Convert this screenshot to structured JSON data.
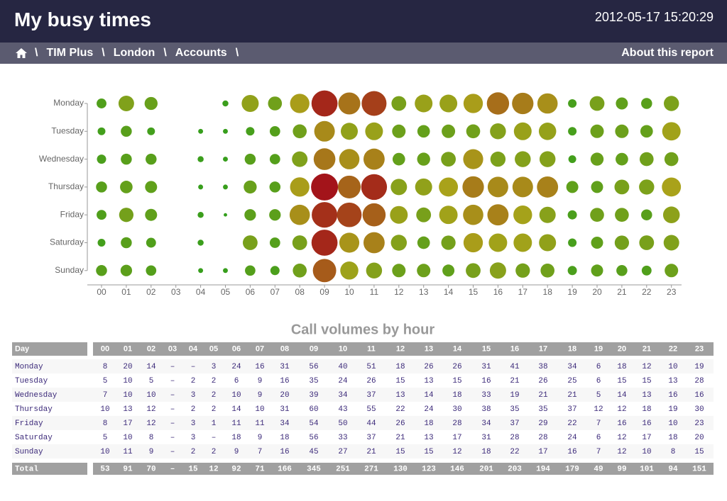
{
  "header": {
    "title": "My busy times",
    "timestamp": "2012-05-17 15:20:29"
  },
  "breadcrumb": {
    "items": [
      "TIM Plus",
      "London",
      "Accounts"
    ],
    "separator": "\\",
    "about": "About this report"
  },
  "chart_data": {
    "type": "bubble",
    "categories": [
      "00",
      "01",
      "02",
      "03",
      "04",
      "05",
      "06",
      "07",
      "08",
      "09",
      "10",
      "11",
      "12",
      "13",
      "14",
      "15",
      "16",
      "17",
      "18",
      "19",
      "20",
      "21",
      "22",
      "23"
    ],
    "colors": [
      "#2f9e1c",
      "#a9a21a",
      "#a3141a"
    ],
    "series": [
      {
        "name": "Monday",
        "values": [
          8,
          20,
          14,
          null,
          null,
          3,
          24,
          16,
          31,
          56,
          40,
          51,
          18,
          26,
          26,
          31,
          41,
          38,
          34,
          6,
          18,
          12,
          10,
          19
        ]
      },
      {
        "name": "Tuesday",
        "values": [
          5,
          10,
          5,
          null,
          2,
          2,
          6,
          9,
          16,
          35,
          24,
          26,
          15,
          13,
          15,
          16,
          21,
          26,
          25,
          6,
          15,
          15,
          13,
          28
        ]
      },
      {
        "name": "Wednesday",
        "values": [
          7,
          10,
          10,
          null,
          3,
          2,
          10,
          9,
          20,
          39,
          34,
          37,
          13,
          14,
          18,
          33,
          19,
          21,
          21,
          5,
          14,
          13,
          16,
          16
        ]
      },
      {
        "name": "Thursday",
        "values": [
          10,
          13,
          12,
          null,
          2,
          2,
          14,
          10,
          31,
          60,
          43,
          55,
          22,
          24,
          30,
          38,
          35,
          35,
          37,
          12,
          12,
          18,
          19,
          30
        ]
      },
      {
        "name": "Friday",
        "values": [
          8,
          17,
          12,
          null,
          3,
          1,
          11,
          11,
          34,
          54,
          50,
          44,
          26,
          18,
          28,
          34,
          37,
          29,
          22,
          7,
          16,
          16,
          10,
          23
        ]
      },
      {
        "name": "Saturday",
        "values": [
          5,
          10,
          8,
          null,
          3,
          null,
          18,
          9,
          18,
          56,
          33,
          37,
          21,
          13,
          17,
          31,
          28,
          28,
          24,
          6,
          12,
          17,
          18,
          20
        ]
      },
      {
        "name": "Sunday",
        "values": [
          10,
          11,
          9,
          null,
          2,
          2,
          9,
          7,
          16,
          45,
          27,
          21,
          15,
          15,
          12,
          18,
          22,
          17,
          16,
          7,
          12,
          10,
          8,
          15
        ]
      }
    ]
  },
  "table": {
    "title": "Call volumes by hour",
    "day_header": "Day",
    "total_label": "Total",
    "empty_label": "–",
    "totals": [
      53,
      91,
      70,
      null,
      15,
      12,
      92,
      71,
      166,
      345,
      251,
      271,
      130,
      123,
      146,
      201,
      203,
      194,
      179,
      49,
      99,
      101,
      94,
      151
    ]
  }
}
